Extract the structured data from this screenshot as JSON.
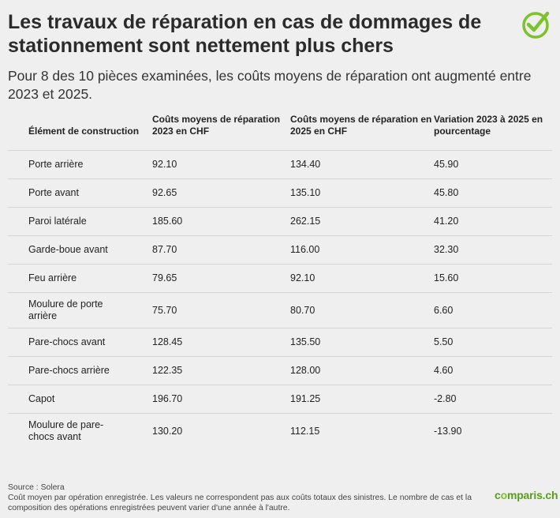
{
  "header": {
    "title": "Les travaux de réparation en cas de dommages de stationnement sont nettement plus chers",
    "subtitle": "Pour 8 des 10 pièces examinées, les coûts moyens de réparation ont augmenté entre 2023 et 2025."
  },
  "logo": {
    "icon": "checkmark-circle-icon",
    "color": "#7cc22a"
  },
  "chart_data": {
    "type": "table",
    "columns": [
      "Élément de construction",
      "Coûts moyens de réparation 2023 en CHF",
      "Coûts moyens de réparation en 2025 en CHF",
      "Variation 2023 à 2025 en pourcentage"
    ],
    "rows": [
      [
        "Porte arrière",
        "92.10",
        "134.40",
        "45.90"
      ],
      [
        "Porte avant",
        "92.65",
        "135.10",
        "45.80"
      ],
      [
        "Paroi latérale",
        "185.60",
        "262.15",
        "41.20"
      ],
      [
        "Garde-boue avant",
        "87.70",
        "116.00",
        "32.30"
      ],
      [
        "Feu arrière",
        "79.65",
        "92.10",
        "15.60"
      ],
      [
        "Moulure de porte arrière",
        "75.70",
        "80.70",
        "6.60"
      ],
      [
        "Pare-chocs avant",
        "128.45",
        "135.50",
        "5.50"
      ],
      [
        "Pare-chocs arrière",
        "122.35",
        "128.00",
        "4.60"
      ],
      [
        "Capot",
        "196.70",
        "191.25",
        "-2.80"
      ],
      [
        "Moulure de pare-chocs avant",
        "130.20",
        "112.15",
        "-13.90"
      ]
    ]
  },
  "footer": {
    "source": "Source : Solera",
    "note": "Coût moyen par opération enregistrée. Les valeurs ne correspondent pas aux coûts totaux des sinistres. Le nombre de cas et la composition des opérations enregistrées peuvent varier d'une année à l'autre.",
    "brand": "comparis.ch",
    "brand_color": "#5a9e1a"
  }
}
